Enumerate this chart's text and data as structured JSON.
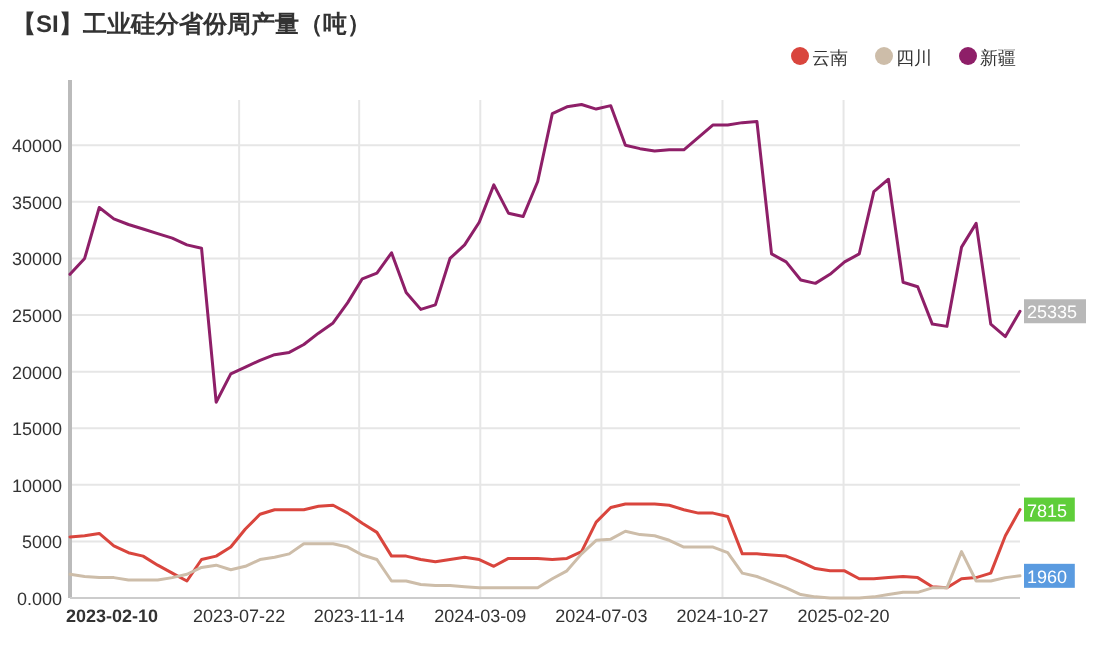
{
  "chart_data": {
    "type": "line",
    "title": "【SI】工业硅分省份周产量（吨）",
    "x": [
      "2023-02-10",
      "2023-02-24",
      "2023-03-10",
      "2023-03-24",
      "2023-04-07",
      "2023-04-21",
      "2023-05-05",
      "2023-05-19",
      "2023-06-02",
      "2023-06-16",
      "2023-06-30",
      "2023-07-14",
      "2023-07-28",
      "2023-08-11",
      "2023-08-25",
      "2023-09-08",
      "2023-09-22",
      "2023-10-06",
      "2023-10-20",
      "2023-11-03",
      "2023-11-17",
      "2023-12-01",
      "2023-12-15",
      "2023-12-29",
      "2024-01-12",
      "2024-01-26",
      "2024-02-09",
      "2024-02-23",
      "2024-03-08",
      "2024-03-22",
      "2024-04-05",
      "2024-04-19",
      "2024-05-03",
      "2024-05-17",
      "2024-05-31",
      "2024-06-14",
      "2024-06-28",
      "2024-07-12",
      "2024-07-26",
      "2024-08-09",
      "2024-08-23",
      "2024-09-06",
      "2024-09-20",
      "2024-10-04",
      "2024-10-18",
      "2024-11-01",
      "2024-11-15",
      "2024-11-29",
      "2024-12-13",
      "2024-12-27",
      "2025-01-10",
      "2025-01-24",
      "2025-02-07",
      "2025-02-21",
      "2025-03-07",
      "2025-03-21",
      "2025-04-04",
      "2025-04-18",
      "2025-05-02",
      "2025-05-16",
      "2025-05-30",
      "2025-06-13",
      "2025-06-27",
      "2025-07-11",
      "2025-07-25",
      "2025-08-08"
    ],
    "series": [
      {
        "name": "云南",
        "color": "#d9453d",
        "values": [
          5400,
          5500,
          5700,
          4600,
          4000,
          3700,
          2900,
          2200,
          1500,
          3400,
          3700,
          4500,
          6100,
          7400,
          7800,
          7800,
          7800,
          8100,
          8200,
          7500,
          6600,
          5800,
          3700,
          3700,
          3400,
          3200,
          3400,
          3600,
          3400,
          2800,
          3500,
          3500,
          3500,
          3400,
          3500,
          4100,
          6700,
          8000,
          8300,
          8300,
          8300,
          8200,
          7800,
          7500,
          7500,
          7200,
          3900,
          3900,
          3800,
          3700,
          3200,
          2600,
          2400,
          2400,
          1700,
          1700,
          1800,
          1900,
          1800,
          1000,
          900,
          1700,
          1800,
          2200,
          5500,
          7815
        ]
      },
      {
        "name": "四川",
        "color": "#cdbda9",
        "values": [
          2100,
          1900,
          1800,
          1800,
          1600,
          1600,
          1600,
          1800,
          2100,
          2700,
          2900,
          2500,
          2800,
          3400,
          3600,
          3900,
          4800,
          4800,
          4800,
          4500,
          3800,
          3400,
          1500,
          1500,
          1200,
          1100,
          1100,
          1000,
          900,
          900,
          900,
          900,
          900,
          1700,
          2400,
          3900,
          5100,
          5200,
          5900,
          5600,
          5500,
          5100,
          4500,
          4500,
          4500,
          4000,
          2200,
          1900,
          1400,
          900,
          300,
          100,
          0,
          0,
          0,
          100,
          300,
          500,
          500,
          900,
          900,
          4100,
          1500,
          1500,
          1800,
          1960
        ]
      },
      {
        "name": "新疆",
        "color": "#8e1f68",
        "values": [
          28600,
          30000,
          34500,
          33500,
          33000,
          32600,
          32200,
          31800,
          31200,
          30900,
          17300,
          19800,
          20400,
          21000,
          21500,
          21700,
          22400,
          23400,
          24300,
          26100,
          28200,
          28700,
          30500,
          27000,
          25500,
          25900,
          30000,
          31200,
          33200,
          36500,
          34000,
          33700,
          36800,
          42800,
          43400,
          43600,
          43200,
          43500,
          40000,
          39700,
          39500,
          39600,
          39600,
          40700,
          41800,
          41800,
          42000,
          42100,
          30400,
          29700,
          28100,
          27800,
          28600,
          29700,
          30400,
          35900,
          37000,
          27900,
          27500,
          24200,
          24000,
          31000,
          33100,
          24200,
          23100,
          25335
        ]
      }
    ],
    "xlim": [
      "2023-02-10",
      "2025-08-08"
    ],
    "xticks": [
      "2023-02-10",
      "2023-07-22",
      "2023-11-14",
      "2024-03-09",
      "2024-07-03",
      "2024-10-27",
      "2025-02-20"
    ],
    "ylim": [
      0,
      44000
    ],
    "yticks": [
      {
        "value": 0,
        "label": "0.000"
      },
      5000,
      10000,
      15000,
      20000,
      25000,
      30000,
      35000,
      40000
    ],
    "annotations": [
      {
        "text": "25335",
        "y": 25335
      },
      {
        "text": "7815",
        "y": 7815
      },
      {
        "text": "1960",
        "y": 1960
      }
    ],
    "grid": true,
    "legend": "top right"
  }
}
